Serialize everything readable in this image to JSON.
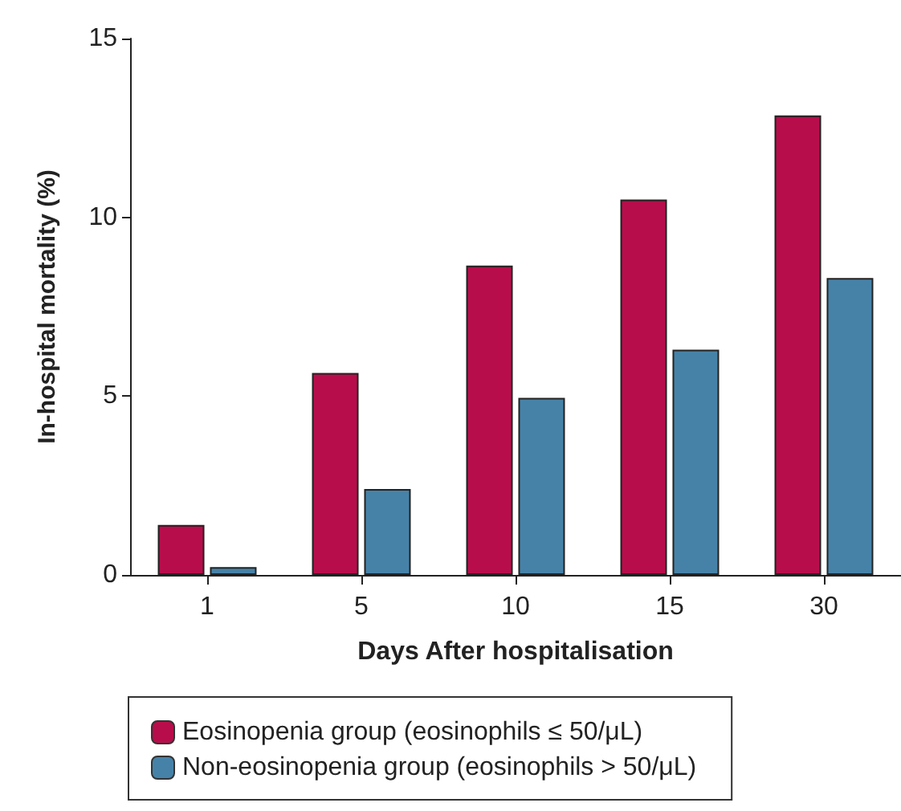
{
  "chart_data": {
    "type": "bar",
    "xlabel": "Days After hospitalisation",
    "ylabel": "In-hospital mortality (%)",
    "categories": [
      "1",
      "5",
      "10",
      "15",
      "30"
    ],
    "series": [
      {
        "name": "Eosinopenia group (eosinophils ≤ 50/μL)",
        "color": "#b80d4b",
        "values": [
          1.4,
          5.65,
          8.65,
          10.5,
          12.85
        ]
      },
      {
        "name": "Non-eosinopenia group (eosinophils > 50/μL)",
        "color": "#4682a8",
        "values": [
          0.22,
          2.4,
          4.95,
          6.3,
          8.3
        ]
      }
    ],
    "ylim": [
      0,
      15
    ],
    "yticks": [
      0,
      5,
      10,
      15
    ],
    "grid": false,
    "legend": "bottom"
  }
}
